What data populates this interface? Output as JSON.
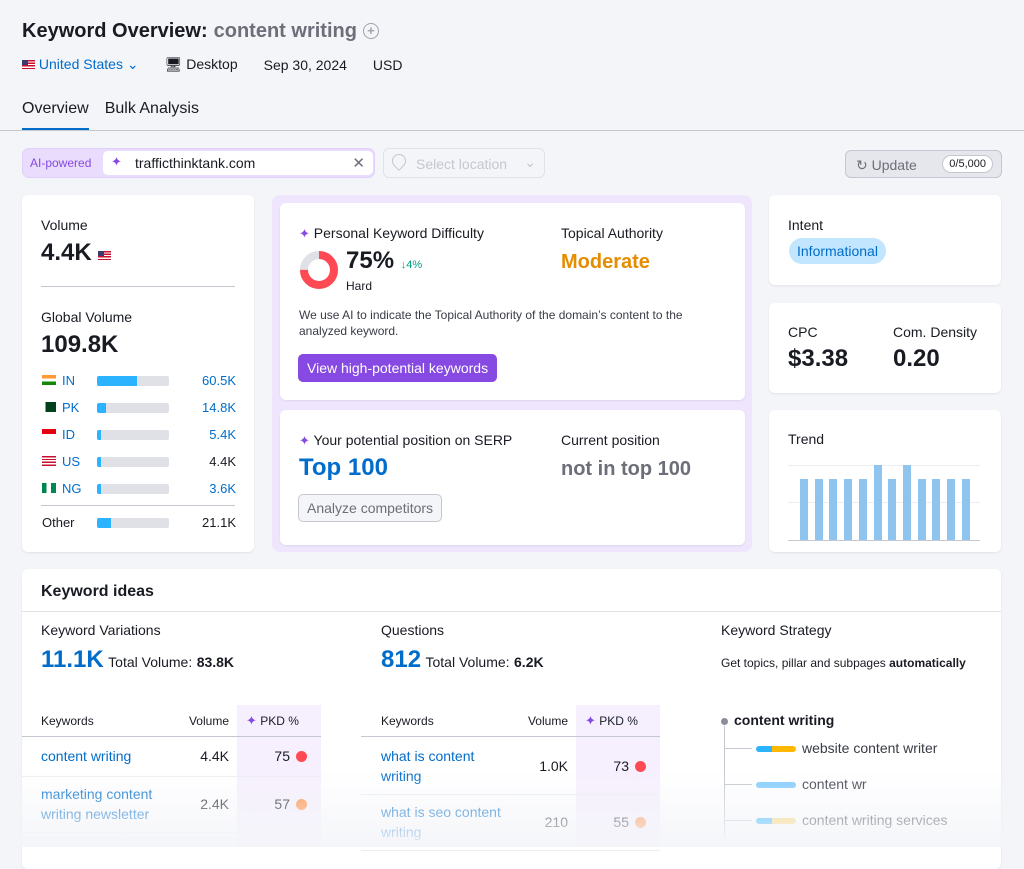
{
  "header": {
    "title": "Keyword Overview:",
    "keyword": "content writing",
    "country": "United States",
    "device": "Desktop",
    "date": "Sep 30, 2024",
    "currency": "USD"
  },
  "tabs": [
    {
      "label": "Overview",
      "active": true
    },
    {
      "label": "Bulk Analysis",
      "active": false
    }
  ],
  "search": {
    "ai_label": "AI-powered",
    "domain": "trafficthinktank.com",
    "location_placeholder": "Select location"
  },
  "update": {
    "label": "Update",
    "count": "0/5,000"
  },
  "volume": {
    "label": "Volume",
    "value": "4.4K",
    "global_label": "Global Volume",
    "global_value": "109.8K",
    "countries": [
      {
        "code": "IN",
        "value": "60.5K",
        "share": 0.55
      },
      {
        "code": "PK",
        "value": "14.8K",
        "share": 0.13
      },
      {
        "code": "ID",
        "value": "5.4K",
        "share": 0.05
      },
      {
        "code": "US",
        "value": "4.4K",
        "share": 0.04
      },
      {
        "code": "NG",
        "value": "3.6K",
        "share": 0.04
      }
    ],
    "other": {
      "label": "Other",
      "value": "21.1K",
      "share": 0.19
    }
  },
  "pkd": {
    "title": "Personal Keyword Difficulty",
    "value": "75%",
    "change": "↓4%",
    "level": "Hard",
    "percent": 75,
    "ta_label": "Topical Authority",
    "ta_value": "Moderate",
    "description": "We use AI to indicate the Topical Authority of the domain’s content to the analyzed keyword.",
    "button": "View high-potential keywords"
  },
  "serp": {
    "title": "Your potential position on SERP",
    "value": "Top 100",
    "current_label": "Current position",
    "current_value": "not in top 100",
    "button": "Analyze competitors"
  },
  "intent": {
    "label": "Intent",
    "value": "Informational"
  },
  "cpc": {
    "label": "CPC",
    "value": "$3.38",
    "density_label": "Com. Density",
    "density_value": "0.20"
  },
  "trend": {
    "label": "Trend",
    "values": [
      0.81,
      0.81,
      0.81,
      0.81,
      0.81,
      1,
      0.81,
      1,
      0.81,
      0.81,
      0.81,
      0.81
    ]
  },
  "ideas": {
    "title": "Keyword ideas",
    "variations": {
      "title": "Keyword Variations",
      "count": "11.1K",
      "total_label": "Total Volume:",
      "total": "83.8K",
      "headers": [
        "Keywords",
        "Volume",
        "PKD %"
      ],
      "rows": [
        {
          "kw": "content writing",
          "vol": "4.4K",
          "pkd": "75",
          "color": "#ff4953"
        },
        {
          "kw": "marketing content writing newsletter",
          "vol": "2.4K",
          "pkd": "57",
          "color": "#ff8c43"
        }
      ]
    },
    "questions": {
      "title": "Questions",
      "count": "812",
      "total_label": "Total Volume:",
      "total": "6.2K",
      "headers": [
        "Keywords",
        "Volume",
        "PKD %"
      ],
      "rows": [
        {
          "kw": "what is content writing",
          "vol": "1.0K",
          "pkd": "73",
          "color": "#ff4953"
        },
        {
          "kw": "what is seo content writing",
          "vol": "210",
          "pkd": "55",
          "color": "#ff8c43"
        }
      ]
    },
    "strategy": {
      "title": "Keyword Strategy",
      "desc": "Get topics, pillar and subpages ",
      "desc_bold": "automatically",
      "root": "content writing",
      "items": [
        "website content writer",
        "content wr",
        "content writing services"
      ]
    }
  }
}
